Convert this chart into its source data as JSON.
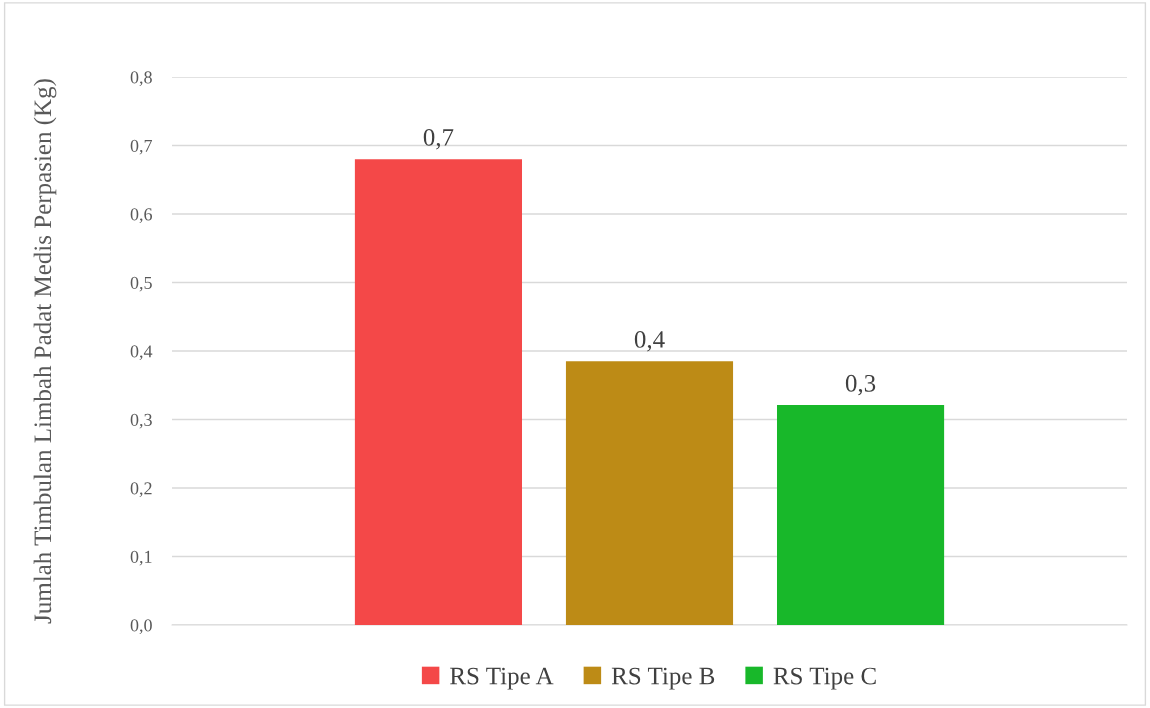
{
  "chart_data": {
    "type": "bar",
    "ylabel": "Jumlah Timbulan Limbah Padat Medis Perpasien (Kg)",
    "categories": [
      null
    ],
    "series": [
      {
        "name": "RS Tipe A",
        "color": "#f44848",
        "values": [
          0.68
        ],
        "value_labels": [
          "0,7"
        ]
      },
      {
        "name": "RS Tipe B",
        "color": "#bd8b16",
        "values": [
          0.385
        ],
        "value_labels": [
          "0,4"
        ]
      },
      {
        "name": "RS Tipe C",
        "color": "#18b82a",
        "values": [
          0.321
        ],
        "value_labels": [
          "0,3"
        ]
      }
    ],
    "ylim": [
      0,
      0.8
    ],
    "yticks": [
      {
        "value": 0,
        "label": "0,0"
      },
      {
        "value": 0.1,
        "label": "0,1"
      },
      {
        "value": 0.2,
        "label": "0,2"
      },
      {
        "value": 0.3,
        "label": "0,3"
      },
      {
        "value": 0.4,
        "label": "0,4"
      },
      {
        "value": 0.5,
        "label": "0,5"
      },
      {
        "value": 0.6,
        "label": "0,6"
      },
      {
        "value": 0.7,
        "label": "0,7"
      },
      {
        "value": 0.8,
        "label": "0,8"
      }
    ],
    "grid": "y",
    "legend": "bottom"
  }
}
